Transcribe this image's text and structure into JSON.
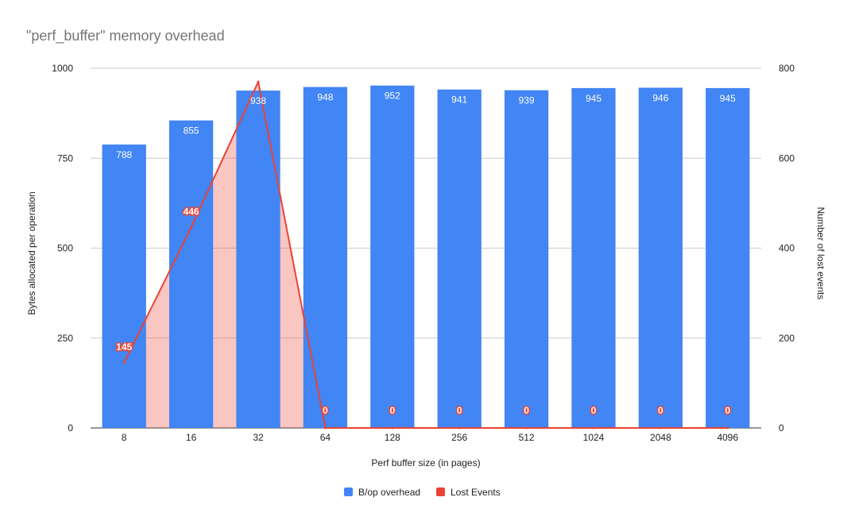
{
  "chart_data": {
    "type": "bar",
    "title": "\"perf_buffer\" memory overhead",
    "xlabel": "Perf buffer size (in pages)",
    "ylabel": "Bytes allocated per operation",
    "y2label": "Number of lost events",
    "categories": [
      "8",
      "16",
      "32",
      "64",
      "128",
      "256",
      "512",
      "1024",
      "2048",
      "4096"
    ],
    "ylim": [
      0,
      1000
    ],
    "y2lim": [
      0,
      800
    ],
    "yticks": [
      "0",
      "250",
      "500",
      "750",
      "1000"
    ],
    "y2ticks": [
      "0",
      "200",
      "400",
      "600",
      "800"
    ],
    "grid": true,
    "legend_position": "bottom",
    "series": [
      {
        "name": "B/op overhead",
        "type": "bar",
        "axis": "left",
        "color": "#4285f4",
        "values": [
          788,
          855,
          938,
          948,
          952,
          941,
          939,
          945,
          946,
          945
        ],
        "labels": [
          "788",
          "855",
          "938",
          "948",
          "952",
          "941",
          "939",
          "945",
          "946",
          "945"
        ]
      },
      {
        "name": "Lost Events",
        "type": "line",
        "axis": "right",
        "color": "#ea4335",
        "values": [
          145,
          446,
          770,
          0,
          0,
          0,
          0,
          0,
          0,
          0
        ],
        "labels": [
          "145",
          "446",
          "",
          "0",
          "0",
          "0",
          "0",
          "0",
          "0",
          "0"
        ]
      }
    ]
  }
}
